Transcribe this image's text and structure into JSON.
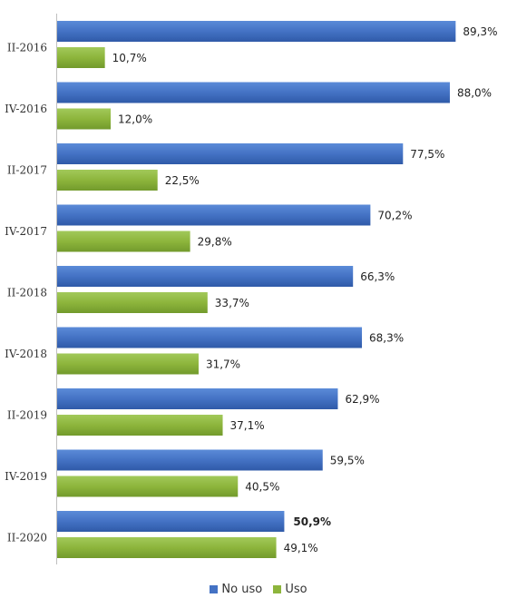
{
  "chart_data": {
    "type": "bar",
    "orientation": "horizontal",
    "categories": [
      "II-2016",
      "IV-2016",
      "II-2017",
      "IV-2017",
      "II-2018",
      "IV-2018",
      "II-2019",
      "IV-2019",
      "II-2020"
    ],
    "series": [
      {
        "name": "No uso",
        "color": "#4472C4",
        "values": [
          89.3,
          88.0,
          77.5,
          70.2,
          66.3,
          68.3,
          62.9,
          59.5,
          50.9
        ],
        "labels": [
          "89,3%",
          "88,0%",
          "77,5%",
          "70,2%",
          "66,3%",
          "68,3%",
          "62,9%",
          "59,5%",
          "50,9%"
        ]
      },
      {
        "name": "Uso",
        "color": "#8DB53C",
        "values": [
          10.7,
          12.0,
          22.5,
          29.8,
          33.7,
          31.7,
          37.1,
          40.5,
          49.1
        ],
        "labels": [
          "10,7%",
          "12,0%",
          "22,5%",
          "29,8%",
          "33,7%",
          "31,7%",
          "37,1%",
          "40,5%",
          "49,1%"
        ]
      }
    ],
    "bold_label": {
      "series": 0,
      "category": 8
    },
    "xlim": [
      0,
      100
    ],
    "grid": false,
    "legend": "bottom"
  }
}
